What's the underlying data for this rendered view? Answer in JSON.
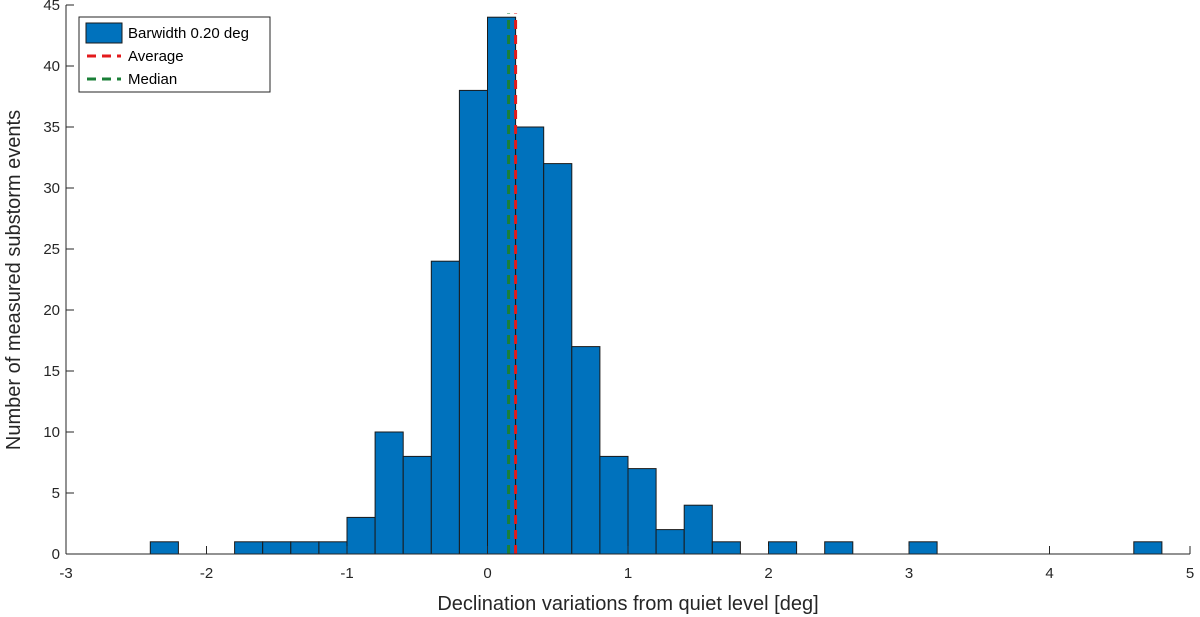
{
  "chart_data": {
    "type": "bar",
    "title": "",
    "xlabel": "Declination variations from quiet level [deg]",
    "ylabel": "Number of measured substorm events",
    "xlim": [
      -3,
      5
    ],
    "ylim": [
      0,
      45
    ],
    "xticks": [
      -3,
      -2,
      -1,
      0,
      1,
      2,
      3,
      4,
      5
    ],
    "yticks": [
      0,
      5,
      10,
      15,
      20,
      25,
      30,
      35,
      40,
      45
    ],
    "bin_width": 0.2,
    "bin_edges": [
      -2.4,
      -2.2,
      -2.0,
      -1.8,
      -1.6,
      -1.4,
      -1.2,
      -1.0,
      -0.8,
      -0.6,
      -0.4,
      -0.2,
      0.0,
      0.2,
      0.4,
      0.6,
      0.8,
      1.0,
      1.2,
      1.4,
      1.6,
      1.8,
      2.0,
      2.2,
      2.4,
      2.6,
      2.8,
      3.0,
      3.2,
      3.4,
      3.6,
      3.8,
      4.0,
      4.2,
      4.4,
      4.6,
      4.8
    ],
    "counts": [
      1,
      0,
      0,
      1,
      1,
      1,
      1,
      3,
      10,
      8,
      24,
      38,
      44,
      35,
      32,
      17,
      8,
      7,
      2,
      4,
      1,
      0,
      1,
      0,
      1,
      0,
      0,
      1,
      0,
      0,
      0,
      0,
      0,
      0,
      0,
      1
    ],
    "average": 0.2,
    "median": 0.15,
    "grid": false,
    "legend_position": "top-left",
    "legend": [
      {
        "label": "Barwidth 0.20 deg",
        "kind": "patch",
        "color": "#0072BD"
      },
      {
        "label": "Average",
        "kind": "dashed-line",
        "color": "#e31a1c"
      },
      {
        "label": "Median",
        "kind": "dashed-line",
        "color": "#1a7f37"
      }
    ]
  }
}
